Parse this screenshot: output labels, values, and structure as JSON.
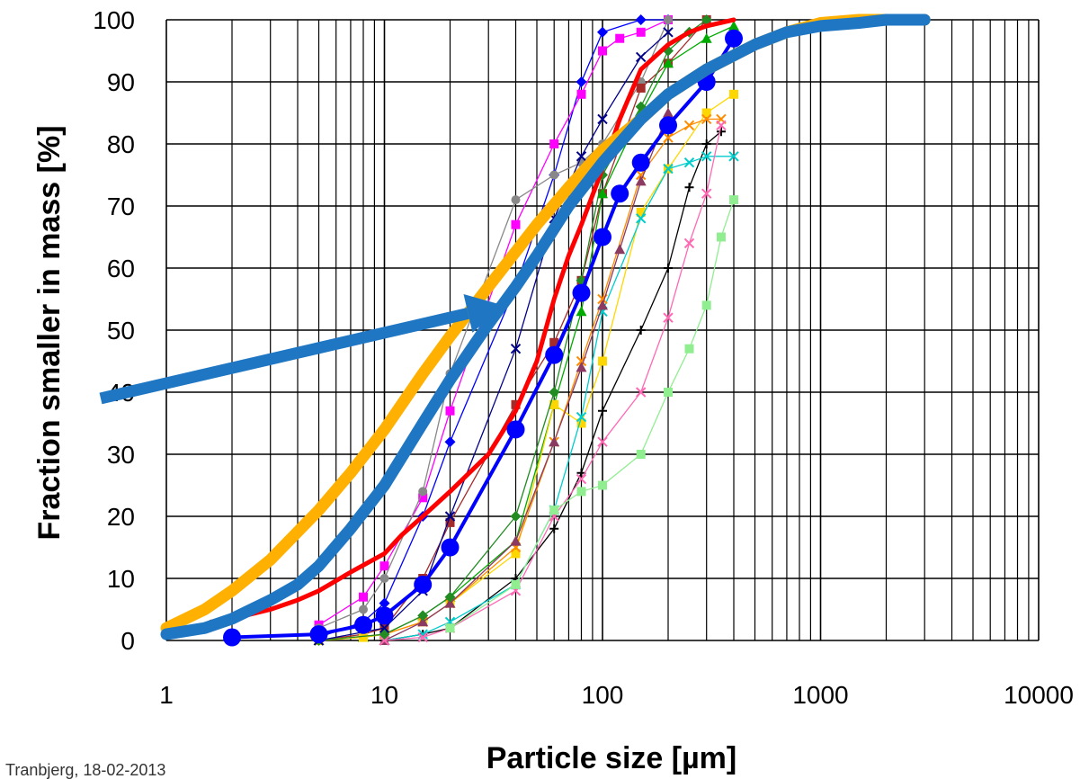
{
  "chart_data": {
    "type": "line",
    "title": "",
    "xlabel": "Particle size [µm]",
    "ylabel": "Fraction smaller in mass [%]",
    "xscale": "log",
    "xlim": [
      1,
      10000
    ],
    "ylim": [
      0,
      100
    ],
    "xticks": [
      "1",
      "10",
      "100",
      "1000",
      "10000"
    ],
    "yticks": [
      "0",
      "10",
      "20",
      "30",
      "40",
      "50",
      "60",
      "70",
      "80",
      "90",
      "100"
    ],
    "grid": "on",
    "legend": "none",
    "series": [
      {
        "color": "#0000ff",
        "marker": "diamond",
        "x": [
          5,
          8,
          10,
          15,
          20,
          40,
          60,
          80,
          100,
          150,
          200
        ],
        "y": [
          0.5,
          3,
          6,
          20,
          32,
          57,
          75,
          90,
          98,
          100,
          100
        ]
      },
      {
        "color": "#ff00ff",
        "marker": "square",
        "x": [
          5,
          8,
          10,
          15,
          20,
          40,
          60,
          80,
          100,
          120,
          150,
          200
        ],
        "y": [
          2.5,
          7,
          12,
          23,
          37,
          67,
          80,
          88,
          95,
          97,
          98,
          100
        ]
      },
      {
        "color": "#888888",
        "marker": "circle",
        "x": [
          5,
          8,
          10,
          15,
          20,
          40,
          60,
          80,
          100,
          150,
          200
        ],
        "y": [
          2,
          5,
          10,
          24,
          43,
          71,
          75,
          77,
          80,
          90,
          100
        ]
      },
      {
        "color": "#a52a2a",
        "marker": "square",
        "x": [
          5,
          8,
          10,
          15,
          20,
          40,
          60,
          80,
          100,
          150,
          200,
          300
        ],
        "y": [
          0,
          1,
          2,
          10,
          19,
          38,
          48,
          58,
          72,
          89,
          93,
          100
        ]
      },
      {
        "color": "#00aa00",
        "marker": "triangle",
        "x": [
          5,
          8,
          10,
          15,
          20,
          40,
          60,
          80,
          100,
          150,
          200,
          300,
          400
        ],
        "y": [
          0,
          0.5,
          1,
          4,
          7,
          16,
          38,
          53,
          72,
          85,
          93,
          97,
          99
        ]
      },
      {
        "color": "#ffd700",
        "marker": "square",
        "x": [
          5,
          8,
          10,
          15,
          20,
          40,
          60,
          80,
          100,
          150,
          200,
          300,
          400
        ],
        "y": [
          0,
          0.5,
          1,
          3,
          6,
          14,
          38,
          35,
          45,
          69,
          76,
          85,
          88
        ]
      },
      {
        "color": "#000000",
        "marker": "plus",
        "x": [
          10,
          15,
          20,
          40,
          60,
          80,
          100,
          150,
          200,
          250,
          300,
          350
        ],
        "y": [
          0,
          1,
          2,
          10,
          18,
          27,
          37,
          50,
          60,
          73,
          80,
          82
        ]
      },
      {
        "color": "#00cccc",
        "marker": "x",
        "x": [
          10,
          15,
          20,
          40,
          60,
          80,
          100,
          150,
          200,
          250,
          300,
          400
        ],
        "y": [
          0,
          1,
          3,
          9,
          21,
          36,
          53,
          68,
          76,
          77,
          78,
          78
        ]
      },
      {
        "color": "#ff8c00",
        "marker": "x",
        "x": [
          5,
          10,
          15,
          20,
          40,
          60,
          80,
          100,
          150,
          200,
          250,
          300,
          350
        ],
        "y": [
          0,
          1,
          3,
          6,
          15,
          32,
          45,
          55,
          75,
          81,
          83,
          84,
          84
        ]
      },
      {
        "color": "#8b3a62",
        "marker": "triangle",
        "x": [
          10,
          15,
          20,
          40,
          60,
          80,
          100,
          120,
          150,
          200
        ],
        "y": [
          0,
          3,
          6,
          16,
          32,
          44,
          54,
          63,
          74,
          85
        ]
      },
      {
        "color": "#ff69b4",
        "marker": "x",
        "x": [
          10,
          15,
          20,
          40,
          60,
          80,
          100,
          150,
          200,
          250,
          300,
          350
        ],
        "y": [
          0,
          0.5,
          2,
          8,
          20,
          26,
          32,
          40,
          52,
          64,
          72,
          83
        ]
      },
      {
        "color": "#90ee90",
        "marker": "square",
        "x": [
          20,
          40,
          60,
          80,
          100,
          150,
          200,
          250,
          300,
          350,
          400
        ],
        "y": [
          2,
          9,
          21,
          24,
          25,
          30,
          40,
          47,
          54,
          65,
          71
        ]
      },
      {
        "color": "#228b22",
        "marker": "diamond",
        "x": [
          5,
          10,
          15,
          20,
          40,
          60,
          80,
          100,
          150,
          200,
          250,
          300
        ],
        "y": [
          0,
          1,
          4,
          7,
          20,
          40,
          58,
          75,
          86,
          95,
          98,
          100
        ]
      },
      {
        "color": "#00008b",
        "marker": "x",
        "x": [
          5,
          10,
          15,
          20,
          40,
          60,
          80,
          100,
          150,
          200
        ],
        "y": [
          0,
          2,
          8,
          20,
          47,
          68,
          78,
          84,
          94,
          98
        ]
      },
      {
        "color": "#ff0000",
        "marker": "none",
        "x": [
          1.6,
          2,
          3,
          4,
          5,
          7,
          10,
          12,
          15,
          20,
          30,
          40,
          50,
          60,
          70,
          80,
          100,
          120,
          150,
          200,
          250,
          300,
          400
        ],
        "y": [
          3,
          3.5,
          5,
          6.5,
          8,
          11,
          14,
          17,
          20,
          24,
          30,
          37,
          45,
          55,
          62,
          67,
          76,
          84,
          92,
          96,
          98,
          99,
          100
        ]
      },
      {
        "color": "#0000ff",
        "marker": "circle",
        "x": [
          2,
          5,
          8,
          10,
          15,
          20,
          40,
          60,
          80,
          100,
          120,
          150,
          200,
          300,
          400
        ],
        "y": [
          0.5,
          1,
          2.5,
          4,
          9,
          15,
          34,
          46,
          56,
          65,
          72,
          77,
          83,
          90,
          97
        ]
      },
      {
        "color": "#ffb000",
        "marker": "none",
        "x": [
          1,
          1.5,
          2,
          3,
          5,
          7,
          10,
          15,
          20,
          30,
          50,
          70,
          100,
          150,
          200,
          300,
          500,
          700,
          1000,
          1500,
          2000,
          3000
        ],
        "y": [
          2,
          5,
          8,
          13,
          21,
          27,
          34,
          43,
          49,
          57,
          67,
          73,
          79,
          84,
          88,
          92,
          96,
          98,
          99.5,
          100,
          100,
          100
        ]
      },
      {
        "color": "#1f77c4",
        "marker": "none",
        "x": [
          1,
          1.5,
          2,
          3,
          4,
          5,
          7,
          10,
          15,
          20,
          30,
          40,
          50,
          70,
          100,
          150,
          200,
          300,
          500,
          700,
          1000,
          1500,
          2000,
          3000
        ],
        "y": [
          1,
          2,
          3.5,
          6.5,
          9,
          12,
          18,
          25,
          35,
          42,
          51,
          57,
          62,
          70,
          77,
          84,
          88,
          92,
          96,
          98,
          99,
          99.5,
          100,
          100
        ]
      }
    ],
    "annotations": [
      {
        "type": "arrow",
        "color": "#1f77c4",
        "from": [
          0.5,
          39
        ],
        "to": [
          35,
          54
        ]
      }
    ],
    "footer": "Tranbjerg, 18-02-2013"
  }
}
